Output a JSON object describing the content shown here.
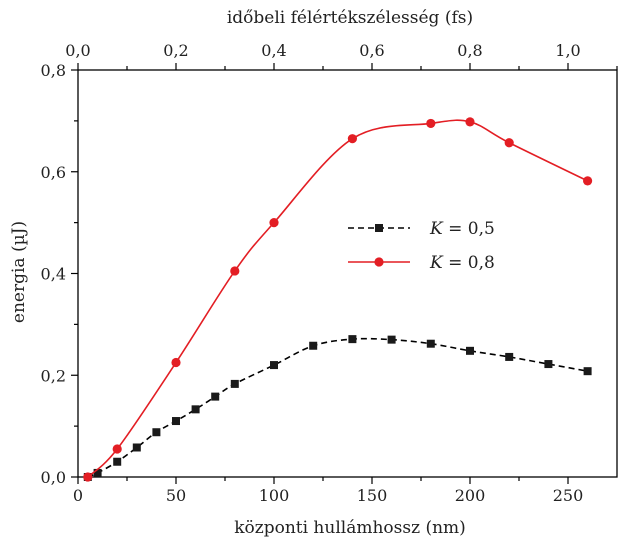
{
  "chart_data": {
    "type": "line",
    "xlabel": "központi hullámhossz (nm)",
    "x2label": "időbeli félértékszélesség (fs)",
    "ylabel": "energia (µJ)",
    "xlim": [
      0,
      275
    ],
    "x2lim": [
      0,
      1.1
    ],
    "ylim": [
      0,
      0.8
    ],
    "x_ticks": [
      {
        "v": 0,
        "label": "0"
      },
      {
        "v": 50,
        "label": "50"
      },
      {
        "v": 100,
        "label": "100"
      },
      {
        "v": 150,
        "label": "150"
      },
      {
        "v": 200,
        "label": "200"
      },
      {
        "v": 250,
        "label": "250"
      }
    ],
    "x2_ticks": [
      {
        "v": 0.0,
        "label": "0,0"
      },
      {
        "v": 0.2,
        "label": "0,2"
      },
      {
        "v": 0.4,
        "label": "0,4"
      },
      {
        "v": 0.6,
        "label": "0,6"
      },
      {
        "v": 0.8,
        "label": "0,8"
      },
      {
        "v": 1.0,
        "label": "1,0"
      }
    ],
    "y_ticks": [
      {
        "v": 0.0,
        "label": "0,0"
      },
      {
        "v": 0.2,
        "label": "0,2"
      },
      {
        "v": 0.4,
        "label": "0,4"
      },
      {
        "v": 0.6,
        "label": "0,6"
      },
      {
        "v": 0.8,
        "label": "0,8"
      }
    ],
    "grid": false,
    "legend_position": "center-right",
    "series": [
      {
        "name": "K = 0,5",
        "legend_k": "K",
        "legend_rest": " = 0,5",
        "color": "#000000",
        "line_style": "dashed",
        "marker": "square",
        "x": [
          5,
          10,
          20,
          30,
          40,
          50,
          60,
          70,
          80,
          100,
          120,
          140,
          160,
          180,
          200,
          220,
          240,
          260
        ],
        "y": [
          0.0,
          0.008,
          0.03,
          0.058,
          0.088,
          0.11,
          0.133,
          0.158,
          0.183,
          0.22,
          0.258,
          0.271,
          0.27,
          0.262,
          0.248,
          0.236,
          0.222,
          0.208
        ]
      },
      {
        "name": "K = 0,8",
        "legend_k": "K",
        "legend_rest": " = 0,8",
        "color": "#e31e24",
        "line_style": "solid",
        "marker": "circle",
        "x": [
          5,
          20,
          50,
          80,
          100,
          140,
          180,
          200,
          220,
          260
        ],
        "y": [
          0.0,
          0.055,
          0.225,
          0.405,
          0.5,
          0.665,
          0.695,
          0.698,
          0.657,
          0.582
        ]
      }
    ]
  }
}
